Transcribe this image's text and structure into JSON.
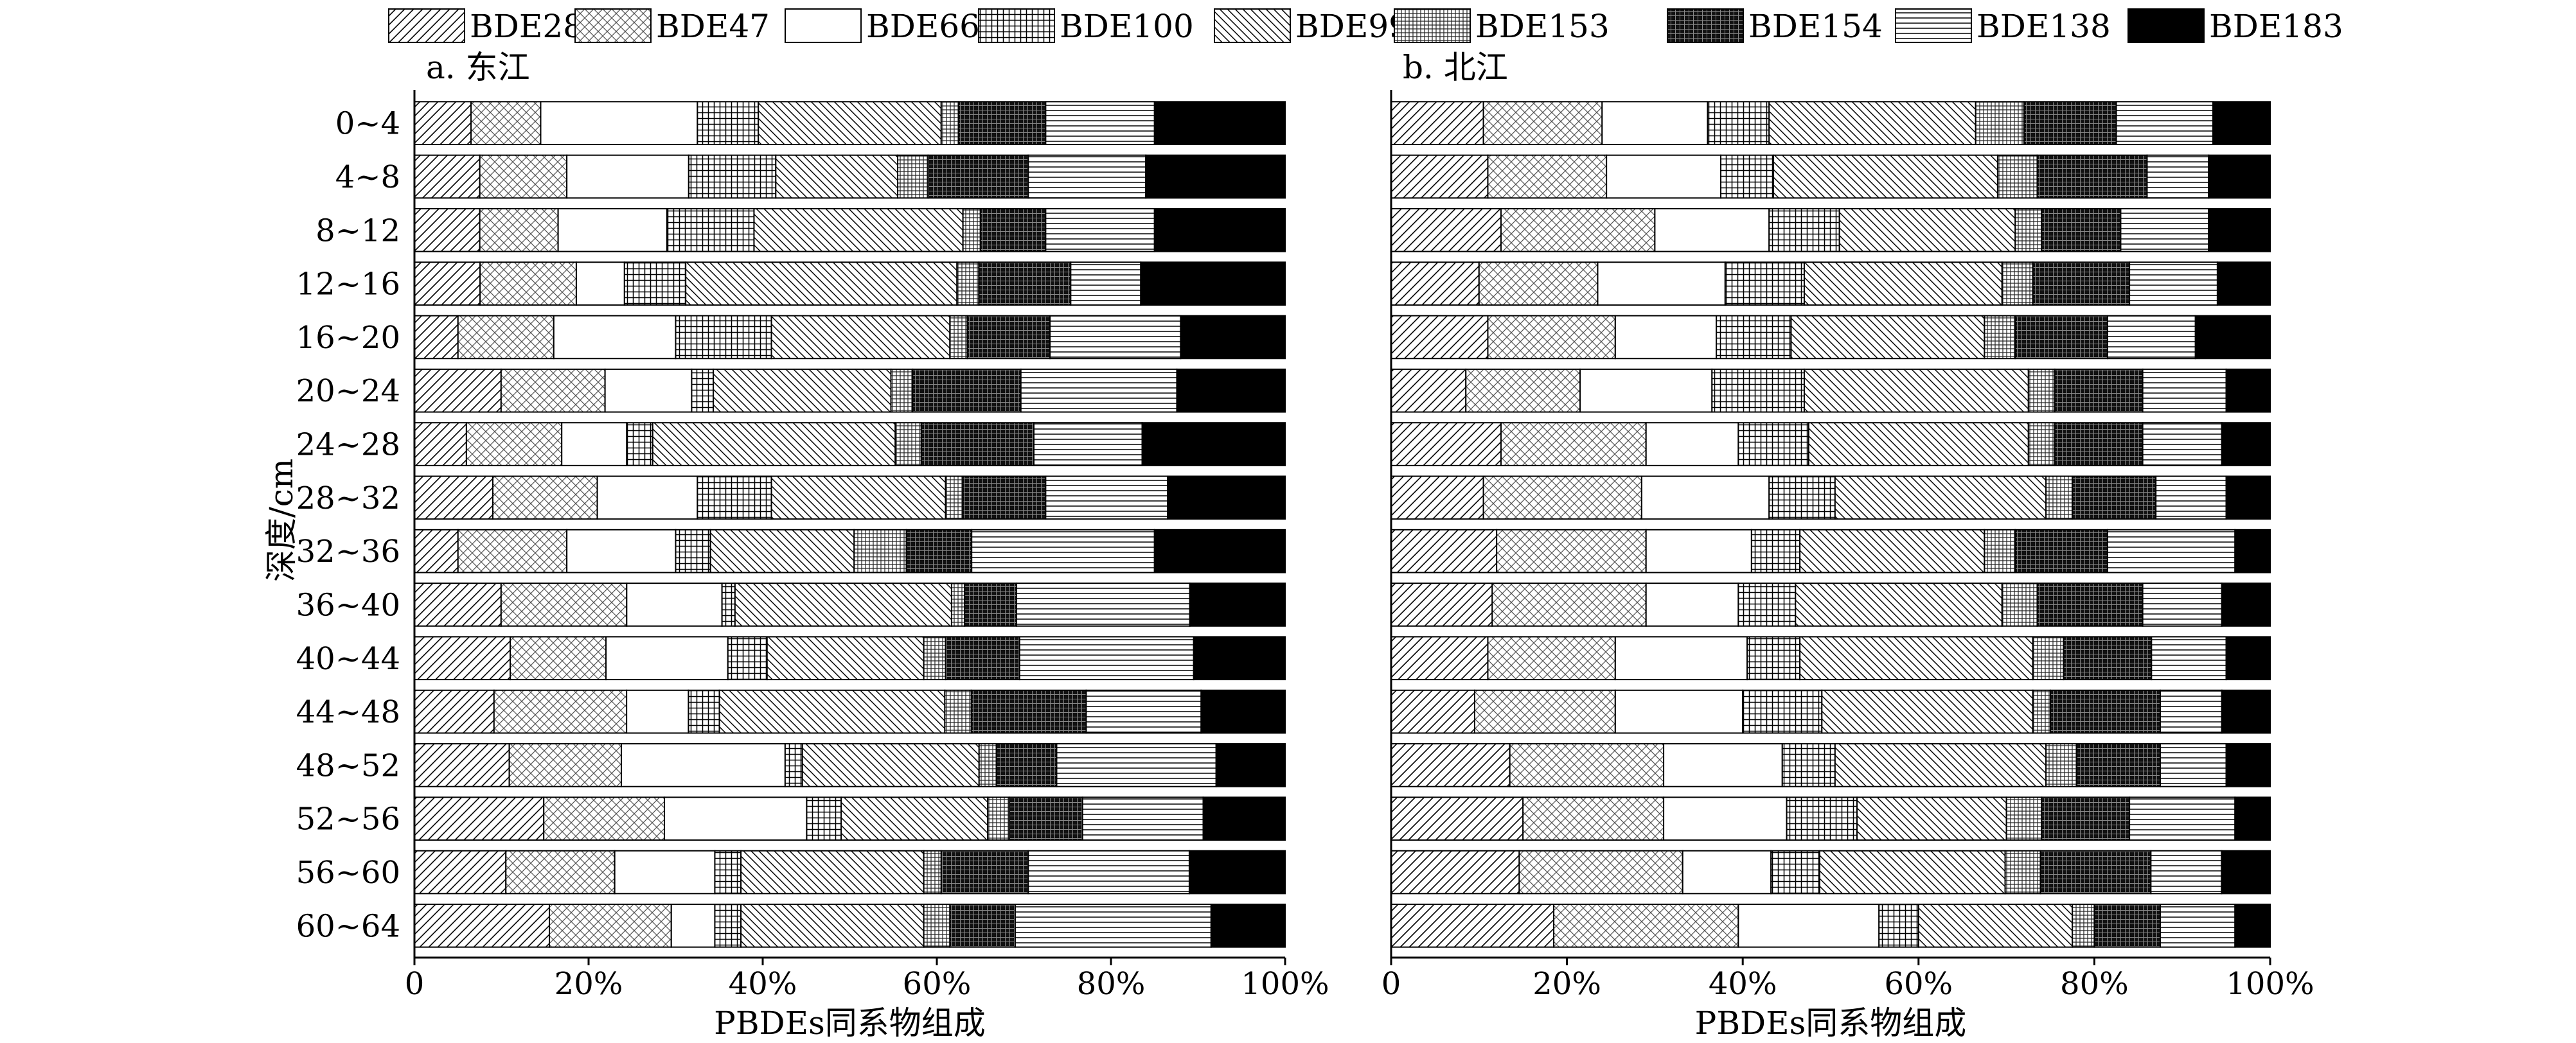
{
  "legend": {
    "items": [
      {
        "name": "BDE28",
        "pattern": "fwd"
      },
      {
        "name": "BDE47",
        "pattern": "cross"
      },
      {
        "name": "BDE66",
        "pattern": "white"
      },
      {
        "name": "BDE100",
        "pattern": "grid"
      },
      {
        "name": "BDE99",
        "pattern": "back"
      },
      {
        "name": "BDE153",
        "pattern": "finegrid"
      },
      {
        "name": "BDE154",
        "pattern": "darkgrid"
      },
      {
        "name": "BDE138",
        "pattern": "horiz"
      },
      {
        "name": "BDE183",
        "pattern": "black"
      }
    ]
  },
  "y_axis_label": "深度/cm",
  "chart_data": [
    {
      "type": "bar",
      "orientation": "horizontal",
      "stacked": true,
      "title": "a. 东江",
      "xlabel": "PBDEs同系物组成",
      "ylabel": "深度/cm",
      "xlim": [
        0,
        100
      ],
      "xticks": [
        "0",
        "20%",
        "40%",
        "60%",
        "80%",
        "100%"
      ],
      "categories": [
        "0~4",
        "4~8",
        "8~12",
        "12~16",
        "16~20",
        "20~24",
        "24~28",
        "28~32",
        "32~36",
        "36~40",
        "40~44",
        "44~48",
        "48~52",
        "52~56",
        "56~60",
        "60~64"
      ],
      "series": [
        {
          "name": "BDE28",
          "values": [
            6.5,
            7.5,
            7.5,
            7.5,
            5,
            10,
            6,
            9,
            5,
            10,
            11,
            9,
            11,
            15,
            10.5,
            15.5
          ]
        },
        {
          "name": "BDE47",
          "values": [
            8,
            10,
            9,
            11,
            11,
            12,
            11,
            12,
            12.5,
            14.5,
            11,
            15,
            13,
            14,
            12.5,
            14
          ]
        },
        {
          "name": "BDE66",
          "values": [
            18,
            14,
            12.5,
            5.5,
            14,
            10,
            7.5,
            11.5,
            12.5,
            11,
            14,
            7,
            19,
            16.5,
            11.5,
            5
          ]
        },
        {
          "name": "BDE100",
          "values": [
            7,
            10,
            10,
            7,
            11,
            2.5,
            3,
            8.5,
            4,
            1.5,
            4.5,
            3.5,
            2,
            4,
            3,
            3
          ]
        },
        {
          "name": "BDE99",
          "values": [
            21,
            14,
            24,
            31,
            20.5,
            20.5,
            28,
            20,
            16.5,
            25,
            18,
            25.5,
            20.5,
            17,
            21,
            21
          ]
        },
        {
          "name": "BDE153",
          "values": [
            2,
            3.5,
            2,
            2.5,
            2,
            2.5,
            3,
            2,
            6,
            1.5,
            2.5,
            3,
            2,
            2.5,
            2,
            3
          ]
        },
        {
          "name": "BDE154",
          "values": [
            10,
            11.5,
            7.5,
            10.5,
            9.5,
            12.5,
            13,
            9.5,
            7.5,
            6,
            8.5,
            13,
            7,
            8.5,
            10,
            7.5
          ]
        },
        {
          "name": "BDE138",
          "values": [
            12.5,
            13.5,
            12.5,
            8,
            15,
            18,
            12.5,
            14,
            21,
            20,
            20,
            13,
            18.5,
            14,
            18.5,
            22.5
          ]
        },
        {
          "name": "BDE183",
          "values": [
            15,
            16,
            15,
            16.5,
            12,
            12.5,
            16.5,
            13.5,
            15,
            11,
            10.5,
            9.5,
            8,
            9.5,
            11,
            8.5
          ]
        }
      ]
    },
    {
      "type": "bar",
      "orientation": "horizontal",
      "stacked": true,
      "title": "b. 北江",
      "xlabel": "PBDEs同系物组成",
      "xlim": [
        0,
        100
      ],
      "xticks": [
        "0",
        "20%",
        "40%",
        "60%",
        "80%",
        "100%"
      ],
      "categories": [
        "0~4",
        "4~8",
        "8~12",
        "12~16",
        "16~20",
        "20~24",
        "24~28",
        "28~32",
        "32~36",
        "36~40",
        "40~44",
        "44~48",
        "48~52",
        "52~56",
        "56~60",
        "60~64"
      ],
      "series": [
        {
          "name": "BDE28",
          "values": [
            10.5,
            11,
            12.5,
            10,
            11,
            8.5,
            12.5,
            10.5,
            12,
            11.5,
            11,
            9.5,
            13.5,
            15,
            14.5,
            18.5
          ]
        },
        {
          "name": "BDE47",
          "values": [
            13.5,
            13.5,
            17.5,
            13.5,
            14.5,
            13,
            16.5,
            18,
            17,
            17.5,
            14.5,
            16,
            17.5,
            16,
            18.5,
            21
          ]
        },
        {
          "name": "BDE66",
          "values": [
            12,
            13,
            13,
            14.5,
            11.5,
            15,
            10.5,
            14.5,
            12,
            10.5,
            15,
            14.5,
            13.5,
            14,
            10,
            16
          ]
        },
        {
          "name": "BDE100",
          "values": [
            7,
            6,
            8,
            9,
            8.5,
            10.5,
            8,
            7.5,
            5.5,
            6.5,
            6,
            9,
            6,
            8,
            5.5,
            4.5
          ]
        },
        {
          "name": "BDE99",
          "values": [
            23.5,
            25.5,
            20,
            22.5,
            22,
            25.5,
            25,
            24,
            21,
            23.5,
            26.5,
            24,
            24,
            17,
            21,
            17.5
          ]
        },
        {
          "name": "BDE153",
          "values": [
            5.5,
            4.5,
            3,
            3.5,
            3.5,
            3,
            3,
            3,
            3.5,
            4,
            3.5,
            2,
            3.5,
            4,
            4,
            2.5
          ]
        },
        {
          "name": "BDE154",
          "values": [
            10.5,
            12.5,
            9,
            11,
            10.5,
            10,
            10,
            9.5,
            10.5,
            12,
            10,
            12.5,
            9.5,
            10,
            12.5,
            7.5
          ]
        },
        {
          "name": "BDE138",
          "values": [
            11,
            7,
            10,
            10,
            10,
            9.5,
            9,
            8,
            14.5,
            9,
            8.5,
            7,
            7.5,
            12,
            8,
            8.5
          ]
        },
        {
          "name": "BDE183",
          "values": [
            6.5,
            7,
            7,
            6,
            8.5,
            5,
            5.5,
            5,
            4,
            5.5,
            5,
            5.5,
            5,
            4,
            5.5,
            4
          ]
        }
      ]
    }
  ]
}
